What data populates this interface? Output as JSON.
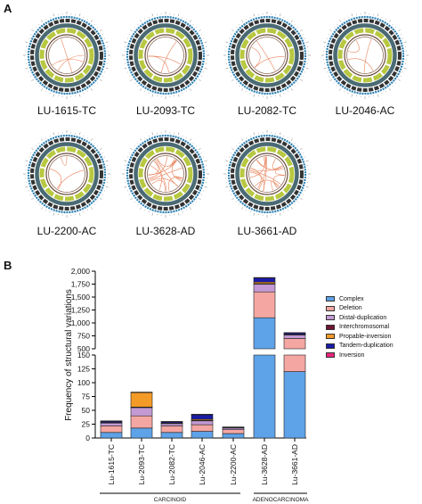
{
  "panel_a": {
    "letter": "A",
    "samples": [
      "LU-1615-TC",
      "LU-2093-TC",
      "LU-2082-TC",
      "LU-2046-AC",
      "LU-2200-AC",
      "LU-3628-AD",
      "LU-3661-AD"
    ]
  },
  "panel_b": {
    "letter": "B"
  },
  "chart_data": {
    "type": "bar",
    "stacked": true,
    "broken_axis": true,
    "ylabel": "Frequency of structural variations",
    "lower_ylim": [
      0,
      150
    ],
    "upper_ylim": [
      500,
      2000
    ],
    "lower_ticks": [
      "0",
      "25",
      "50",
      "75",
      "100",
      "125",
      "150"
    ],
    "upper_ticks": [
      "500",
      "750",
      "1,000",
      "1,250",
      "1,500",
      "1,750",
      "2,000"
    ],
    "categories": [
      "Lu-1615-TC",
      "Lu-2093-TC",
      "Lu-2082-TC",
      "Lu-2046-AC",
      "Lu-2200-AC",
      "Lu-3628-AD",
      "Lu-3661-AD"
    ],
    "groups": [
      {
        "label": "CARCINOID",
        "range": [
          0,
          4
        ]
      },
      {
        "label": "ADENOCARCINOMA",
        "range": [
          5,
          6
        ]
      }
    ],
    "legend_position": "right",
    "series": [
      {
        "name": "Complex",
        "color": "#5ea2e8",
        "values": [
          10,
          18,
          10,
          12,
          8,
          1100,
          120
        ]
      },
      {
        "name": "Deletion",
        "color": "#f4a6a2",
        "values": [
          12,
          22,
          12,
          12,
          7,
          500,
          580
        ]
      },
      {
        "name": "Distal-duplication",
        "color": "#c39ad4",
        "values": [
          5,
          15,
          4,
          7,
          3,
          150,
          70
        ]
      },
      {
        "name": "Interchromosomal",
        "color": "#6f1230",
        "values": [
          1,
          1,
          1,
          1,
          0,
          10,
          5
        ]
      },
      {
        "name": "Propable-inversion",
        "color": "#f39a27",
        "values": [
          0,
          26,
          0,
          2,
          0,
          30,
          5
        ]
      },
      {
        "name": "Tandem-duplication",
        "color": "#1a1aa8",
        "values": [
          2,
          0,
          2,
          8,
          1,
          80,
          30
        ]
      },
      {
        "name": "Inversion",
        "color": "#e8257a",
        "values": [
          1,
          1,
          1,
          1,
          1,
          8,
          2
        ]
      }
    ]
  }
}
